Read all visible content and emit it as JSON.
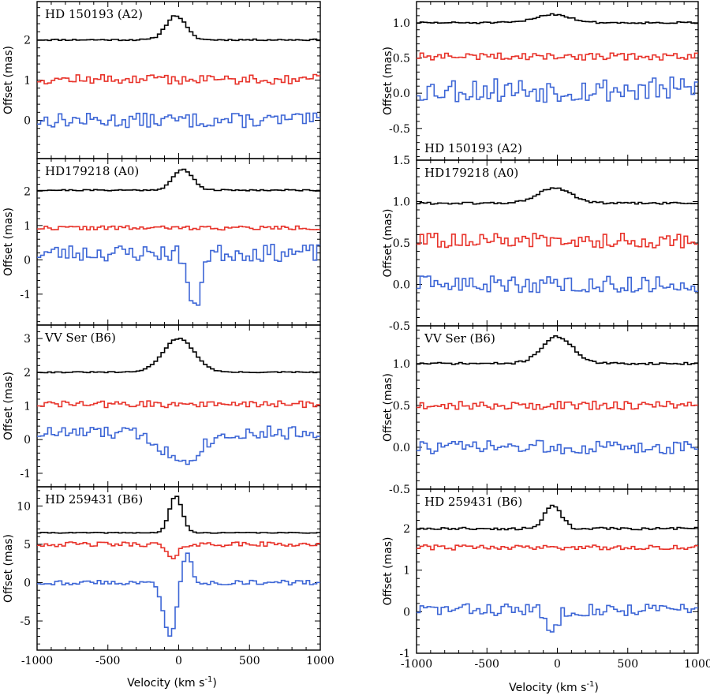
{
  "figure": {
    "xlabel_main": "Velocity (km s",
    "xlabel_sup": "-1",
    "xlabel_close": ")",
    "ylabel": "Offset (mas)"
  },
  "chart_data": [
    {
      "type": "line",
      "column": "left",
      "row": 1,
      "title": "HD 150193 (A2)",
      "title_pos": "top",
      "xlim": [
        -1000,
        1000
      ],
      "ylim": [
        -0.95,
        2.95
      ],
      "yticks": [
        0,
        1,
        2
      ],
      "ytick_labels": [
        "0",
        "1",
        "2"
      ],
      "xticks": [
        -1000,
        -500,
        0,
        500,
        1000
      ],
      "xtick_labels": [],
      "series": [
        {
          "name": "black",
          "color": "#000000",
          "base": 2.0,
          "noise": 0.018,
          "peak": 0.6,
          "peak_center": -20,
          "peak_width": 70,
          "seed": 11,
          "steps": 80
        },
        {
          "name": "red",
          "color": "#e8332a",
          "base": 1.02,
          "noise": 0.12,
          "seed": 12,
          "steps": 80
        },
        {
          "name": "blue",
          "color": "#3d66d6",
          "base": 0.0,
          "noise": 0.18,
          "seed": 13,
          "steps": 80
        }
      ]
    },
    {
      "type": "line",
      "column": "left",
      "row": 2,
      "title": "HD179218 (A0)",
      "title_pos": "top",
      "xlim": [
        -1000,
        1000
      ],
      "ylim": [
        -1.9,
        2.95
      ],
      "yticks": [
        -1,
        0,
        1,
        2
      ],
      "ytick_labels": [
        "-1",
        "0",
        "1",
        "2"
      ],
      "xticks": [
        -1000,
        -500,
        0,
        500,
        1000
      ],
      "xtick_labels": [],
      "series": [
        {
          "name": "black",
          "color": "#000000",
          "base": 2.03,
          "noise": 0.02,
          "peak": 0.6,
          "peak_center": 30,
          "peak_width": 70,
          "seed": 21,
          "steps": 80
        },
        {
          "name": "red",
          "color": "#e8332a",
          "base": 0.93,
          "noise": 0.06,
          "seed": 22,
          "steps": 80
        },
        {
          "name": "blue",
          "color": "#3d66d6",
          "base": 0.2,
          "noise": 0.25,
          "dip": -1.7,
          "dip_center": 110,
          "dip_width": 40,
          "seed": 23,
          "steps": 80
        }
      ]
    },
    {
      "type": "line",
      "column": "left",
      "row": 3,
      "title": "VV Ser (B6)",
      "title_pos": "top",
      "xlim": [
        -1000,
        1000
      ],
      "ylim": [
        -1.4,
        3.4
      ],
      "yticks": [
        -1,
        0,
        1,
        2,
        3
      ],
      "ytick_labels": [
        "-1",
        "0",
        "1",
        "2",
        "3"
      ],
      "xticks": [
        -1000,
        -500,
        0,
        500,
        1000
      ],
      "xtick_labels": [],
      "series": [
        {
          "name": "black",
          "color": "#000000",
          "base": 2.0,
          "noise": 0.015,
          "peak": 1.0,
          "peak_center": 0,
          "peak_width": 110,
          "seed": 31,
          "steps": 80
        },
        {
          "name": "red",
          "color": "#e8332a",
          "base": 1.05,
          "noise": 0.1,
          "seed": 32,
          "steps": 80
        },
        {
          "name": "blue",
          "color": "#3d66d6",
          "base": 0.2,
          "noise": 0.2,
          "dip": -0.8,
          "dip_center": 20,
          "dip_width": 130,
          "seed": 33,
          "steps": 80
        }
      ]
    },
    {
      "type": "line",
      "column": "left",
      "row": 4,
      "title": "HD 259431 (B6)",
      "title_pos": "top",
      "xlim": [
        -1000,
        1000
      ],
      "ylim": [
        -8.8,
        12.5
      ],
      "yticks": [
        -5,
        0,
        5,
        10
      ],
      "ytick_labels": [
        "-5",
        "0",
        "5",
        "10"
      ],
      "xticks": [
        -1000,
        -500,
        0,
        500,
        1000
      ],
      "xtick_labels": [
        "-1000",
        "-500",
        "0",
        "500",
        "1000"
      ],
      "series": [
        {
          "name": "black",
          "color": "#000000",
          "base": 6.5,
          "noise": 0.05,
          "peak": 4.8,
          "peak_center": -20,
          "peak_width": 45,
          "seed": 41,
          "steps": 80
        },
        {
          "name": "red",
          "color": "#e8332a",
          "base": 5.0,
          "noise": 0.3,
          "dip": -2.0,
          "dip_center": -40,
          "dip_width": 40,
          "seed": 42,
          "steps": 80
        },
        {
          "name": "blue",
          "color": "#3d66d6",
          "base": 0.0,
          "noise": 0.3,
          "dip": -7.0,
          "dip_center": -60,
          "dip_width": 45,
          "bump": 4.0,
          "bump_center": 55,
          "bump_width": 35,
          "seed": 43,
          "steps": 80
        }
      ]
    },
    {
      "type": "line",
      "column": "right",
      "row": 1,
      "title": "HD 150193 (A2)",
      "title_pos": "bottom",
      "xlim": [
        -1000,
        1000
      ],
      "ylim": [
        -0.95,
        1.3
      ],
      "yticks": [
        -0.5,
        0.0,
        0.5,
        1.0
      ],
      "ytick_labels": [
        "-0.5",
        "0.0",
        "0.5",
        "1.0"
      ],
      "xticks": [
        -1000,
        -500,
        0,
        500,
        1000
      ],
      "xtick_labels": [],
      "series": [
        {
          "name": "black",
          "color": "#000000",
          "base": 1.0,
          "noise": 0.012,
          "peak": 0.12,
          "peak_center": -30,
          "peak_width": 120,
          "seed": 51,
          "steps": 80
        },
        {
          "name": "red",
          "color": "#e8332a",
          "base": 0.52,
          "noise": 0.05,
          "seed": 52,
          "steps": 80
        },
        {
          "name": "blue",
          "color": "#3d66d6",
          "base": 0.05,
          "noise": 0.18,
          "seed": 53,
          "steps": 80
        }
      ]
    },
    {
      "type": "line",
      "column": "right",
      "row": 2,
      "title": "HD179218 (A0)",
      "title_pos": "top",
      "xlim": [
        -1000,
        1000
      ],
      "ylim": [
        -0.5,
        1.5
      ],
      "yticks": [
        -0.5,
        0.0,
        0.5,
        1.0,
        1.5
      ],
      "ytick_labels": [
        "-0.5",
        "0.0",
        "0.5",
        "1.0",
        "1.5"
      ],
      "xticks": [
        -1000,
        -500,
        0,
        500,
        1000
      ],
      "xtick_labels": [],
      "series": [
        {
          "name": "black",
          "color": "#000000",
          "base": 0.98,
          "noise": 0.012,
          "peak": 0.18,
          "peak_center": -20,
          "peak_width": 120,
          "seed": 61,
          "steps": 80
        },
        {
          "name": "red",
          "color": "#e8332a",
          "base": 0.53,
          "noise": 0.09,
          "seed": 62,
          "steps": 80
        },
        {
          "name": "blue",
          "color": "#3d66d6",
          "base": 0.0,
          "noise": 0.1,
          "seed": 63,
          "steps": 80
        }
      ]
    },
    {
      "type": "line",
      "column": "right",
      "row": 3,
      "title": "VV Ser (B6)",
      "title_pos": "top",
      "xlim": [
        -1000,
        1000
      ],
      "ylim": [
        -0.5,
        1.45
      ],
      "yticks": [
        -0.5,
        0.0,
        0.5,
        1.0
      ],
      "ytick_labels": [
        "-0.5",
        "0.0",
        "0.5",
        "1.0"
      ],
      "xticks": [
        -1000,
        -500,
        0,
        500,
        1000
      ],
      "xtick_labels": [],
      "series": [
        {
          "name": "black",
          "color": "#000000",
          "base": 1.0,
          "noise": 0.012,
          "peak": 0.32,
          "peak_center": 0,
          "peak_width": 110,
          "seed": 71,
          "steps": 80
        },
        {
          "name": "red",
          "color": "#e8332a",
          "base": 0.5,
          "noise": 0.05,
          "seed": 72,
          "steps": 80
        },
        {
          "name": "blue",
          "color": "#3d66d6",
          "base": 0.0,
          "noise": 0.08,
          "seed": 73,
          "steps": 80
        }
      ]
    },
    {
      "type": "line",
      "column": "right",
      "row": 4,
      "title": "HD 259431 (B6)",
      "title_pos": "top",
      "xlim": [
        -1000,
        1000
      ],
      "ylim": [
        -1.0,
        2.95
      ],
      "yticks": [
        -1,
        0,
        1,
        2
      ],
      "ytick_labels": [
        "-1",
        "0",
        "1",
        "2"
      ],
      "xticks": [
        -1000,
        -500,
        0,
        500,
        1000
      ],
      "xtick_labels": [
        "-1000",
        "-500",
        "0",
        "500",
        "1000"
      ],
      "series": [
        {
          "name": "black",
          "color": "#000000",
          "base": 2.0,
          "noise": 0.03,
          "peak": 0.55,
          "peak_center": -30,
          "peak_width": 60,
          "seed": 81,
          "steps": 80
        },
        {
          "name": "red",
          "color": "#e8332a",
          "base": 1.55,
          "noise": 0.06,
          "seed": 82,
          "steps": 80
        },
        {
          "name": "blue",
          "color": "#3d66d6",
          "base": 0.05,
          "noise": 0.15,
          "dip": -0.55,
          "dip_center": -40,
          "dip_width": 40,
          "seed": 83,
          "steps": 80
        }
      ]
    }
  ]
}
